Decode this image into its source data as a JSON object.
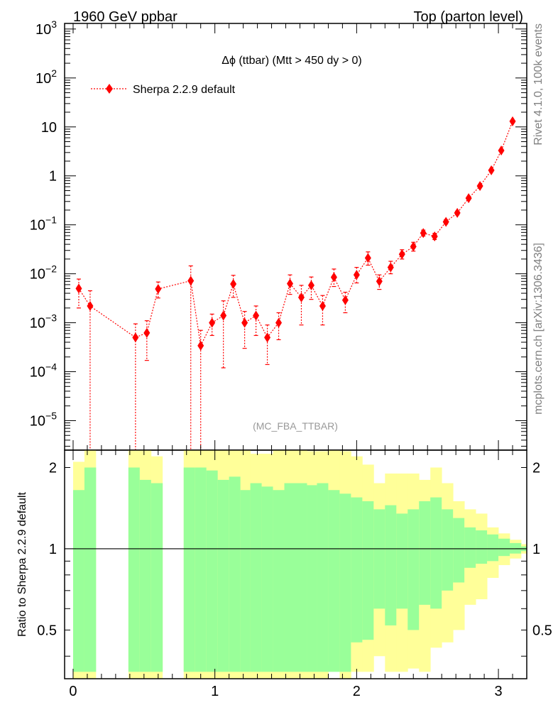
{
  "header": {
    "left": "1960 GeV ppbar",
    "right": "Top (parton level)"
  },
  "side_labels": {
    "rivet": "Rivet 4.1.0,  100k events",
    "mcplots": "mcplots.cern.ch [arXiv:1306.3436]"
  },
  "chart_data": [
    {
      "panel": "main",
      "type": "scatter",
      "title": "Δϕ (ttbar) (Mtt > 450 dy > 0)",
      "watermark": "(MC_FBA_TTBAR)",
      "xlim": [
        -0.06,
        3.2
      ],
      "ylim": [
        2.5e-06,
        1300
      ],
      "yscale": "log",
      "y_ticks": [
        {
          "value": 1000.0,
          "label": "10",
          "sup": "3"
        },
        {
          "value": 100.0,
          "label": "10",
          "sup": "2"
        },
        {
          "value": 10,
          "label": "10",
          "sup": ""
        },
        {
          "value": 1,
          "label": "1",
          "sup": ""
        },
        {
          "value": 0.1,
          "label": "10",
          "sup": "−1"
        },
        {
          "value": 0.01,
          "label": "10",
          "sup": "−2"
        },
        {
          "value": 0.001,
          "label": "10",
          "sup": "−3"
        },
        {
          "value": 0.0001,
          "label": "10",
          "sup": "−4"
        },
        {
          "value": 1e-05,
          "label": "10",
          "sup": "−5"
        }
      ],
      "legend": {
        "placement": "top-left",
        "entries": [
          "Sherpa 2.2.9 default"
        ]
      },
      "color": "#ff0000",
      "series": [
        {
          "name": "Sherpa 2.2.9 default",
          "points": [
            {
              "x": 0.04,
              "y": 0.005,
              "lo": 0.002,
              "hi": 0.0078
            },
            {
              "x": 0.12,
              "y": 0.0022,
              "lo": 1e-07,
              "hi": 0.0045
            },
            {
              "x": 0.44,
              "y": 0.0005,
              "lo": 1e-07,
              "hi": 0.00095
            },
            {
              "x": 0.52,
              "y": 0.00062,
              "lo": 0.00017,
              "hi": 0.0011
            },
            {
              "x": 0.6,
              "y": 0.0049,
              "lo": 0.0032,
              "hi": 0.0068
            },
            {
              "x": 0.83,
              "y": 0.0072,
              "lo": 1e-07,
              "hi": 0.0145
            },
            {
              "x": 0.9,
              "y": 0.00034,
              "lo": 1e-07,
              "hi": 0.0007
            },
            {
              "x": 0.98,
              "y": 0.001,
              "lo": 0.00055,
              "hi": 0.0015
            },
            {
              "x": 1.06,
              "y": 0.0014,
              "lo": 0.00012,
              "hi": 0.0028
            },
            {
              "x": 1.13,
              "y": 0.0062,
              "lo": 0.0033,
              "hi": 0.0093
            },
            {
              "x": 1.21,
              "y": 0.001,
              "lo": 0.0003,
              "hi": 0.0017
            },
            {
              "x": 1.29,
              "y": 0.0014,
              "lo": 0.00055,
              "hi": 0.0022
            },
            {
              "x": 1.37,
              "y": 0.0005,
              "lo": 0.00014,
              "hi": 0.0009
            },
            {
              "x": 1.45,
              "y": 0.001,
              "lo": 0.00045,
              "hi": 0.0016
            },
            {
              "x": 1.53,
              "y": 0.0063,
              "lo": 0.0038,
              "hi": 0.0095
            },
            {
              "x": 1.61,
              "y": 0.0033,
              "lo": 0.0009,
              "hi": 0.0058
            },
            {
              "x": 1.68,
              "y": 0.0058,
              "lo": 0.003,
              "hi": 0.0086
            },
            {
              "x": 1.76,
              "y": 0.0022,
              "lo": 0.0009,
              "hi": 0.0036
            },
            {
              "x": 1.84,
              "y": 0.0085,
              "lo": 0.0055,
              "hi": 0.0125
            },
            {
              "x": 1.92,
              "y": 0.0029,
              "lo": 0.0016,
              "hi": 0.0042
            },
            {
              "x": 2.0,
              "y": 0.0095,
              "lo": 0.0065,
              "hi": 0.0135
            },
            {
              "x": 2.08,
              "y": 0.021,
              "lo": 0.015,
              "hi": 0.028
            },
            {
              "x": 2.16,
              "y": 0.007,
              "lo": 0.0048,
              "hi": 0.0095
            },
            {
              "x": 2.24,
              "y": 0.0135,
              "lo": 0.01,
              "hi": 0.018
            },
            {
              "x": 2.32,
              "y": 0.025,
              "lo": 0.02,
              "hi": 0.031
            },
            {
              "x": 2.4,
              "y": 0.036,
              "lo": 0.029,
              "hi": 0.044
            },
            {
              "x": 2.47,
              "y": 0.068,
              "lo": 0.059,
              "hi": 0.078
            },
            {
              "x": 2.55,
              "y": 0.058,
              "lo": 0.05,
              "hi": 0.067
            },
            {
              "x": 2.63,
              "y": 0.115,
              "lo": 0.104,
              "hi": 0.127
            },
            {
              "x": 2.71,
              "y": 0.175,
              "lo": 0.16,
              "hi": 0.19
            },
            {
              "x": 2.79,
              "y": 0.35,
              "lo": 0.33,
              "hi": 0.37
            },
            {
              "x": 2.87,
              "y": 0.62,
              "lo": 0.59,
              "hi": 0.65
            },
            {
              "x": 2.95,
              "y": 1.3,
              "lo": 1.25,
              "hi": 1.35
            },
            {
              "x": 3.02,
              "y": 3.3,
              "lo": 3.2,
              "hi": 3.4
            },
            {
              "x": 3.1,
              "y": 13.0,
              "lo": 12.7,
              "hi": 13.3
            }
          ]
        }
      ]
    },
    {
      "panel": "ratio",
      "type": "area",
      "ylabel": "Ratio to Sherpa 2.2.9 default",
      "xlim": [
        -0.06,
        3.2
      ],
      "ylim": [
        0.33,
        2.32
      ],
      "yscale": "log",
      "y_ticks": [
        {
          "value": 0.5,
          "label": "0.5"
        },
        {
          "value": 1,
          "label": "1"
        },
        {
          "value": 2,
          "label": "2"
        }
      ],
      "x_ticks": [
        {
          "value": 0,
          "label": "0"
        },
        {
          "value": 1,
          "label": "1"
        },
        {
          "value": 2,
          "label": "2"
        },
        {
          "value": 3,
          "label": "3"
        }
      ],
      "reference_line": 1,
      "bands": {
        "inner_color": "#99ff99",
        "outer_color": "#ffff99"
      },
      "bins": [
        {
          "x0": 0.0,
          "x1": 0.08,
          "g_lo": 0.35,
          "g_hi": 1.65,
          "y_lo": 0.33,
          "y_hi": 2.1
        },
        {
          "x0": 0.08,
          "x1": 0.16,
          "g_lo": 0.35,
          "g_hi": 2.0,
          "y_lo": 0.33,
          "y_hi": 2.35
        },
        {
          "x0": 0.39,
          "x1": 0.47,
          "g_lo": 0.35,
          "g_hi": 2.0,
          "y_lo": 0.33,
          "y_hi": 2.35
        },
        {
          "x0": 0.47,
          "x1": 0.55,
          "g_lo": 0.35,
          "g_hi": 1.8,
          "y_lo": 0.33,
          "y_hi": 2.35
        },
        {
          "x0": 0.55,
          "x1": 0.63,
          "g_lo": 0.35,
          "g_hi": 1.75,
          "y_lo": 0.33,
          "y_hi": 2.2
        },
        {
          "x0": 0.78,
          "x1": 0.86,
          "g_lo": 0.35,
          "g_hi": 2.0,
          "y_lo": 0.33,
          "y_hi": 2.35
        },
        {
          "x0": 0.86,
          "x1": 0.94,
          "g_lo": 0.35,
          "g_hi": 2.0,
          "y_lo": 0.33,
          "y_hi": 2.35
        },
        {
          "x0": 0.94,
          "x1": 1.02,
          "g_lo": 0.35,
          "g_hi": 1.95,
          "y_lo": 0.33,
          "y_hi": 2.35
        },
        {
          "x0": 1.02,
          "x1": 1.1,
          "g_lo": 0.35,
          "g_hi": 1.8,
          "y_lo": 0.33,
          "y_hi": 2.35
        },
        {
          "x0": 1.1,
          "x1": 1.18,
          "g_lo": 0.35,
          "g_hi": 1.85,
          "y_lo": 0.33,
          "y_hi": 2.35
        },
        {
          "x0": 1.18,
          "x1": 1.25,
          "g_lo": 0.35,
          "g_hi": 1.65,
          "y_lo": 0.33,
          "y_hi": 2.35
        },
        {
          "x0": 1.25,
          "x1": 1.33,
          "g_lo": 0.35,
          "g_hi": 1.75,
          "y_lo": 0.33,
          "y_hi": 2.25
        },
        {
          "x0": 1.33,
          "x1": 1.41,
          "g_lo": 0.35,
          "g_hi": 1.7,
          "y_lo": 0.33,
          "y_hi": 2.25
        },
        {
          "x0": 1.41,
          "x1": 1.49,
          "g_lo": 0.35,
          "g_hi": 1.65,
          "y_lo": 0.33,
          "y_hi": 2.35
        },
        {
          "x0": 1.49,
          "x1": 1.57,
          "g_lo": 0.35,
          "g_hi": 1.75,
          "y_lo": 0.33,
          "y_hi": 2.35
        },
        {
          "x0": 1.57,
          "x1": 1.65,
          "g_lo": 0.35,
          "g_hi": 1.75,
          "y_lo": 0.33,
          "y_hi": 2.35
        },
        {
          "x0": 1.65,
          "x1": 1.72,
          "g_lo": 0.35,
          "g_hi": 1.72,
          "y_lo": 0.33,
          "y_hi": 2.3
        },
        {
          "x0": 1.72,
          "x1": 1.8,
          "g_lo": 0.35,
          "g_hi": 1.75,
          "y_lo": 0.33,
          "y_hi": 2.3
        },
        {
          "x0": 1.8,
          "x1": 1.88,
          "g_lo": 0.35,
          "g_hi": 1.65,
          "y_lo": 0.37,
          "y_hi": 2.35
        },
        {
          "x0": 1.88,
          "x1": 1.96,
          "g_lo": 0.35,
          "g_hi": 1.6,
          "y_lo": 0.33,
          "y_hi": 2.3
        },
        {
          "x0": 1.96,
          "x1": 2.04,
          "g_lo": 0.45,
          "g_hi": 1.55,
          "y_lo": 0.35,
          "y_hi": 2.2
        },
        {
          "x0": 2.04,
          "x1": 2.12,
          "g_lo": 0.46,
          "g_hi": 1.5,
          "y_lo": 0.35,
          "y_hi": 2.05
        },
        {
          "x0": 2.12,
          "x1": 2.2,
          "g_lo": 0.6,
          "g_hi": 1.4,
          "y_lo": 0.4,
          "y_hi": 1.75
        },
        {
          "x0": 2.2,
          "x1": 2.28,
          "g_lo": 0.52,
          "g_hi": 1.45,
          "y_lo": 0.35,
          "y_hi": 1.9
        },
        {
          "x0": 2.28,
          "x1": 2.36,
          "g_lo": 0.6,
          "g_hi": 1.35,
          "y_lo": 0.35,
          "y_hi": 1.9
        },
        {
          "x0": 2.36,
          "x1": 2.44,
          "g_lo": 0.5,
          "g_hi": 1.4,
          "y_lo": 0.36,
          "y_hi": 1.9
        },
        {
          "x0": 2.44,
          "x1": 2.52,
          "g_lo": 0.62,
          "g_hi": 1.5,
          "y_lo": 0.35,
          "y_hi": 1.8
        },
        {
          "x0": 2.52,
          "x1": 2.6,
          "g_lo": 0.6,
          "g_hi": 1.55,
          "y_lo": 0.43,
          "y_hi": 2.0
        },
        {
          "x0": 2.6,
          "x1": 2.68,
          "g_lo": 0.7,
          "g_hi": 1.4,
          "y_lo": 0.45,
          "y_hi": 1.75
        },
        {
          "x0": 2.68,
          "x1": 2.76,
          "g_lo": 0.75,
          "g_hi": 1.3,
          "y_lo": 0.5,
          "y_hi": 1.5
        },
        {
          "x0": 2.76,
          "x1": 2.84,
          "g_lo": 0.85,
          "g_hi": 1.2,
          "y_lo": 0.62,
          "y_hi": 1.4
        },
        {
          "x0": 2.84,
          "x1": 2.92,
          "g_lo": 0.88,
          "g_hi": 1.17,
          "y_lo": 0.65,
          "y_hi": 1.35
        },
        {
          "x0": 2.92,
          "x1": 3.0,
          "g_lo": 0.9,
          "g_hi": 1.13,
          "y_lo": 0.78,
          "y_hi": 1.2
        },
        {
          "x0": 3.0,
          "x1": 3.08,
          "g_lo": 0.94,
          "g_hi": 1.09,
          "y_lo": 0.87,
          "y_hi": 1.14
        },
        {
          "x0": 3.08,
          "x1": 3.16,
          "g_lo": 0.96,
          "g_hi": 1.05,
          "y_lo": 0.92,
          "y_hi": 1.08
        },
        {
          "x0": 3.16,
          "x1": 3.2,
          "g_lo": 0.98,
          "g_hi": 1.02,
          "y_lo": 0.96,
          "y_hi": 1.04
        }
      ]
    }
  ]
}
